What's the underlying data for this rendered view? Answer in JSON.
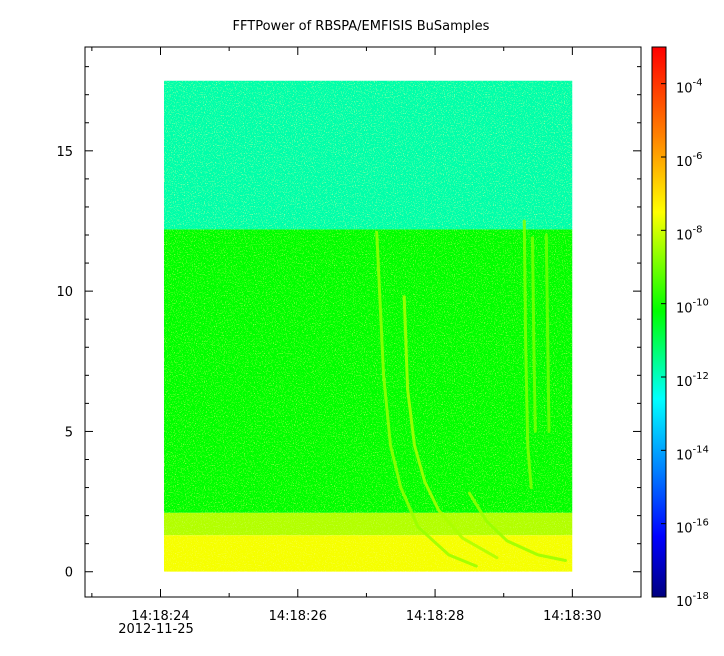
{
  "chart_data": {
    "type": "heatmap",
    "title": "FFTPower of RBSPA/EMFISIS  BuSamples",
    "xlabel": "",
    "ylabel": "",
    "x_ticks": [
      "14:18:24",
      "14:18:26",
      "14:18:28",
      "14:18:30"
    ],
    "x_tick_values": [
      24,
      26,
      28,
      30
    ],
    "x_date_label": "2012-11-25",
    "xlim": [
      22.9,
      31
    ],
    "data_xrange": [
      24.05,
      30.0
    ],
    "y_ticks": [
      "0",
      "5",
      "10",
      "15"
    ],
    "y_tick_values": [
      0,
      5,
      10,
      15
    ],
    "ylim": [
      -0.9,
      18.7
    ],
    "data_yrange": [
      0,
      17.5
    ],
    "colorbar": {
      "scale": "log",
      "range": [
        1e-18,
        0.001
      ],
      "ticks": [
        {
          "base": "10",
          "exp": "-4",
          "value": 0.0001
        },
        {
          "base": "10",
          "exp": "-6",
          "value": 1e-06
        },
        {
          "base": "10",
          "exp": "-8",
          "value": 1e-08
        },
        {
          "base": "10",
          "exp": "-10",
          "value": 1e-10
        },
        {
          "base": "10",
          "exp": "-12",
          "value": 1e-12
        },
        {
          "base": "10",
          "exp": "-14",
          "value": 1e-14
        },
        {
          "base": "10",
          "exp": "-16",
          "value": 1e-16
        },
        {
          "base": "10",
          "exp": "-18",
          "value": 1e-18
        }
      ]
    },
    "bands": [
      {
        "y_from": 12.2,
        "y_to": 17.5,
        "power_log10": -11.8
      },
      {
        "y_from": 2.1,
        "y_to": 12.2,
        "power_log10": -10.2
      },
      {
        "y_from": 1.3,
        "y_to": 2.1,
        "power_log10": -8.3
      },
      {
        "y_from": 0,
        "y_to": 1.3,
        "power_log10": -7.6
      }
    ],
    "features": [
      {
        "points": [
          [
            27.15,
            12.1
          ],
          [
            27.25,
            7.0
          ],
          [
            27.35,
            4.5
          ],
          [
            27.5,
            3.0
          ],
          [
            27.75,
            1.6
          ],
          [
            28.2,
            0.6
          ],
          [
            28.6,
            0.2
          ]
        ],
        "power_log10": -8.6
      },
      {
        "points": [
          [
            27.55,
            9.8
          ],
          [
            27.6,
            6.5
          ],
          [
            27.7,
            4.5
          ],
          [
            27.85,
            3.2
          ],
          [
            28.05,
            2.2
          ],
          [
            28.4,
            1.2
          ],
          [
            28.9,
            0.5
          ]
        ],
        "power_log10": -8.4
      },
      {
        "points": [
          [
            28.5,
            2.8
          ],
          [
            28.75,
            1.8
          ],
          [
            29.05,
            1.1
          ],
          [
            29.5,
            0.6
          ],
          [
            29.9,
            0.4
          ]
        ],
        "power_log10": -8.6
      },
      {
        "points": [
          [
            29.3,
            12.5
          ],
          [
            29.32,
            8.0
          ],
          [
            29.35,
            4.5
          ],
          [
            29.4,
            3.0
          ]
        ],
        "power_log10": -8.8
      },
      {
        "points": [
          [
            29.42,
            11.9
          ],
          [
            29.44,
            8.0
          ],
          [
            29.46,
            5.0
          ]
        ],
        "power_log10": -8.9
      },
      {
        "points": [
          [
            29.62,
            12.0
          ],
          [
            29.64,
            8.5
          ],
          [
            29.66,
            5.0
          ]
        ],
        "power_log10": -9.0
      }
    ]
  }
}
